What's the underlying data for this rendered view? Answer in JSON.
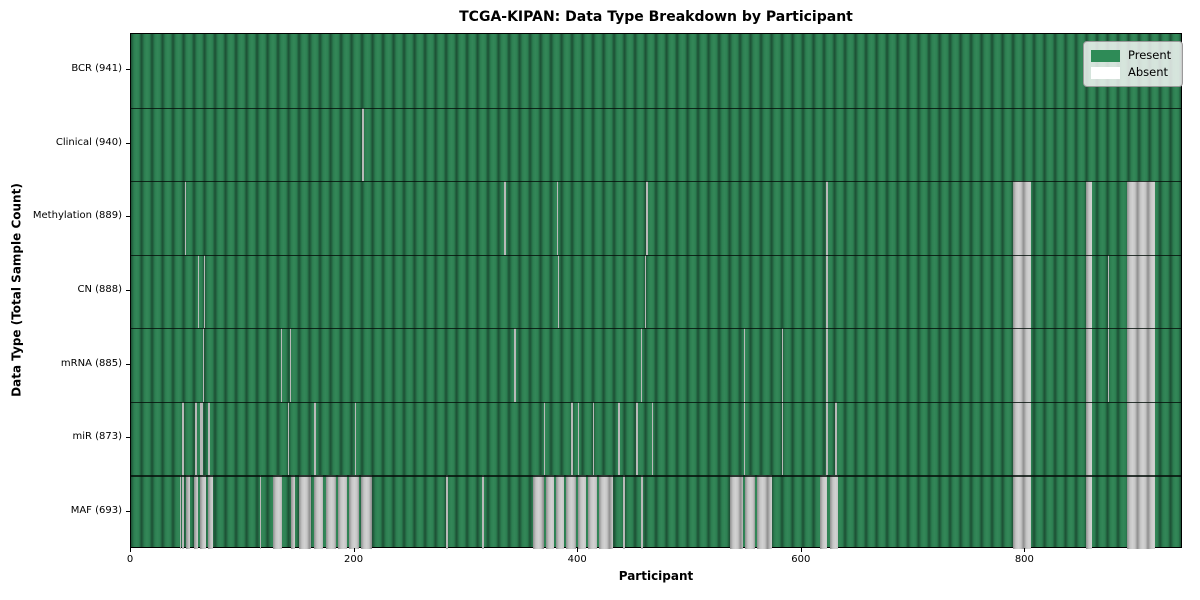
{
  "figure": {
    "title": "TCGA-KIPAN: Data Type Breakdown by Participant",
    "xlabel": "Participant",
    "ylabel": "Data Type (Total Sample Count)"
  },
  "legend": {
    "items": [
      {
        "label": "Present",
        "color": "#2e8b57"
      },
      {
        "label": "Absent",
        "color": "#ffffff"
      }
    ]
  },
  "chart_data": {
    "type": "heatmap",
    "title": "TCGA-KIPAN: Data Type Breakdown by Participant",
    "xlabel": "Participant",
    "ylabel": "Data Type (Total Sample Count)",
    "legend_position": "upper right",
    "n_participants": 941,
    "xticks": [
      0,
      200,
      400,
      600,
      800
    ],
    "xlim": [
      0,
      941
    ],
    "colors": {
      "present_light": "#348758",
      "present_mid": "#2d8052",
      "present_dark": "#1c4f34",
      "absent_light": "#d2d2d2",
      "absent_mid": "#c6c6c6",
      "absent_dark": "#8f8f8f",
      "legend_present": "#2e8b57",
      "legend_absent": "#ffffff"
    },
    "rows": [
      {
        "name": "BCR",
        "count": 941,
        "absent_ranges": []
      },
      {
        "name": "Clinical",
        "count": 940,
        "absent_ranges": [
          [
            207,
            207
          ]
        ]
      },
      {
        "name": "Methylation",
        "count": 889,
        "absent_ranges": [
          [
            48,
            48
          ],
          [
            334,
            334
          ],
          [
            381,
            381
          ],
          [
            461,
            461
          ],
          [
            622,
            622
          ],
          [
            789,
            804
          ],
          [
            854,
            859
          ],
          [
            891,
            915
          ]
        ]
      },
      {
        "name": "CN",
        "count": 888,
        "absent_ranges": [
          [
            60,
            60
          ],
          [
            65,
            65
          ],
          [
            382,
            382
          ],
          [
            460,
            460
          ],
          [
            622,
            622
          ],
          [
            874,
            874
          ],
          [
            789,
            804
          ],
          [
            854,
            859
          ],
          [
            891,
            915
          ]
        ]
      },
      {
        "name": "mRNA",
        "count": 885,
        "absent_ranges": [
          [
            64,
            64
          ],
          [
            134,
            134
          ],
          [
            142,
            142
          ],
          [
            343,
            343
          ],
          [
            456,
            456
          ],
          [
            548,
            548
          ],
          [
            582,
            582
          ],
          [
            622,
            622
          ],
          [
            874,
            874
          ],
          [
            789,
            804
          ],
          [
            854,
            859
          ],
          [
            891,
            915
          ]
        ]
      },
      {
        "name": "miR",
        "count": 873,
        "absent_ranges": [
          [
            46,
            46
          ],
          [
            57,
            58
          ],
          [
            62,
            63
          ],
          [
            69,
            70
          ],
          [
            140,
            140
          ],
          [
            164,
            164
          ],
          [
            200,
            200
          ],
          [
            369,
            369
          ],
          [
            394,
            394
          ],
          [
            400,
            400
          ],
          [
            413,
            413
          ],
          [
            436,
            436
          ],
          [
            452,
            452
          ],
          [
            466,
            466
          ],
          [
            548,
            548
          ],
          [
            582,
            582
          ],
          [
            622,
            622
          ],
          [
            630,
            630
          ],
          [
            789,
            804
          ],
          [
            854,
            859
          ],
          [
            891,
            915
          ]
        ]
      },
      {
        "name": "MAF",
        "count": 693,
        "absent_ranges": [
          [
            44,
            44
          ],
          [
            46,
            46
          ],
          [
            49,
            52
          ],
          [
            56,
            59
          ],
          [
            62,
            66
          ],
          [
            69,
            72
          ],
          [
            115,
            115
          ],
          [
            127,
            134
          ],
          [
            143,
            146
          ],
          [
            150,
            160
          ],
          [
            164,
            171
          ],
          [
            174,
            182
          ],
          [
            185,
            192
          ],
          [
            195,
            203
          ],
          [
            206,
            215
          ],
          [
            282,
            283
          ],
          [
            314,
            315
          ],
          [
            360,
            368
          ],
          [
            371,
            377
          ],
          [
            380,
            386
          ],
          [
            389,
            397
          ],
          [
            400,
            406
          ],
          [
            409,
            416
          ],
          [
            419,
            430
          ],
          [
            440,
            441
          ],
          [
            456,
            457
          ],
          [
            536,
            546
          ],
          [
            549,
            557
          ],
          [
            560,
            572
          ],
          [
            616,
            622
          ],
          [
            625,
            631
          ],
          [
            789,
            804
          ],
          [
            854,
            859
          ],
          [
            891,
            915
          ]
        ]
      }
    ]
  }
}
